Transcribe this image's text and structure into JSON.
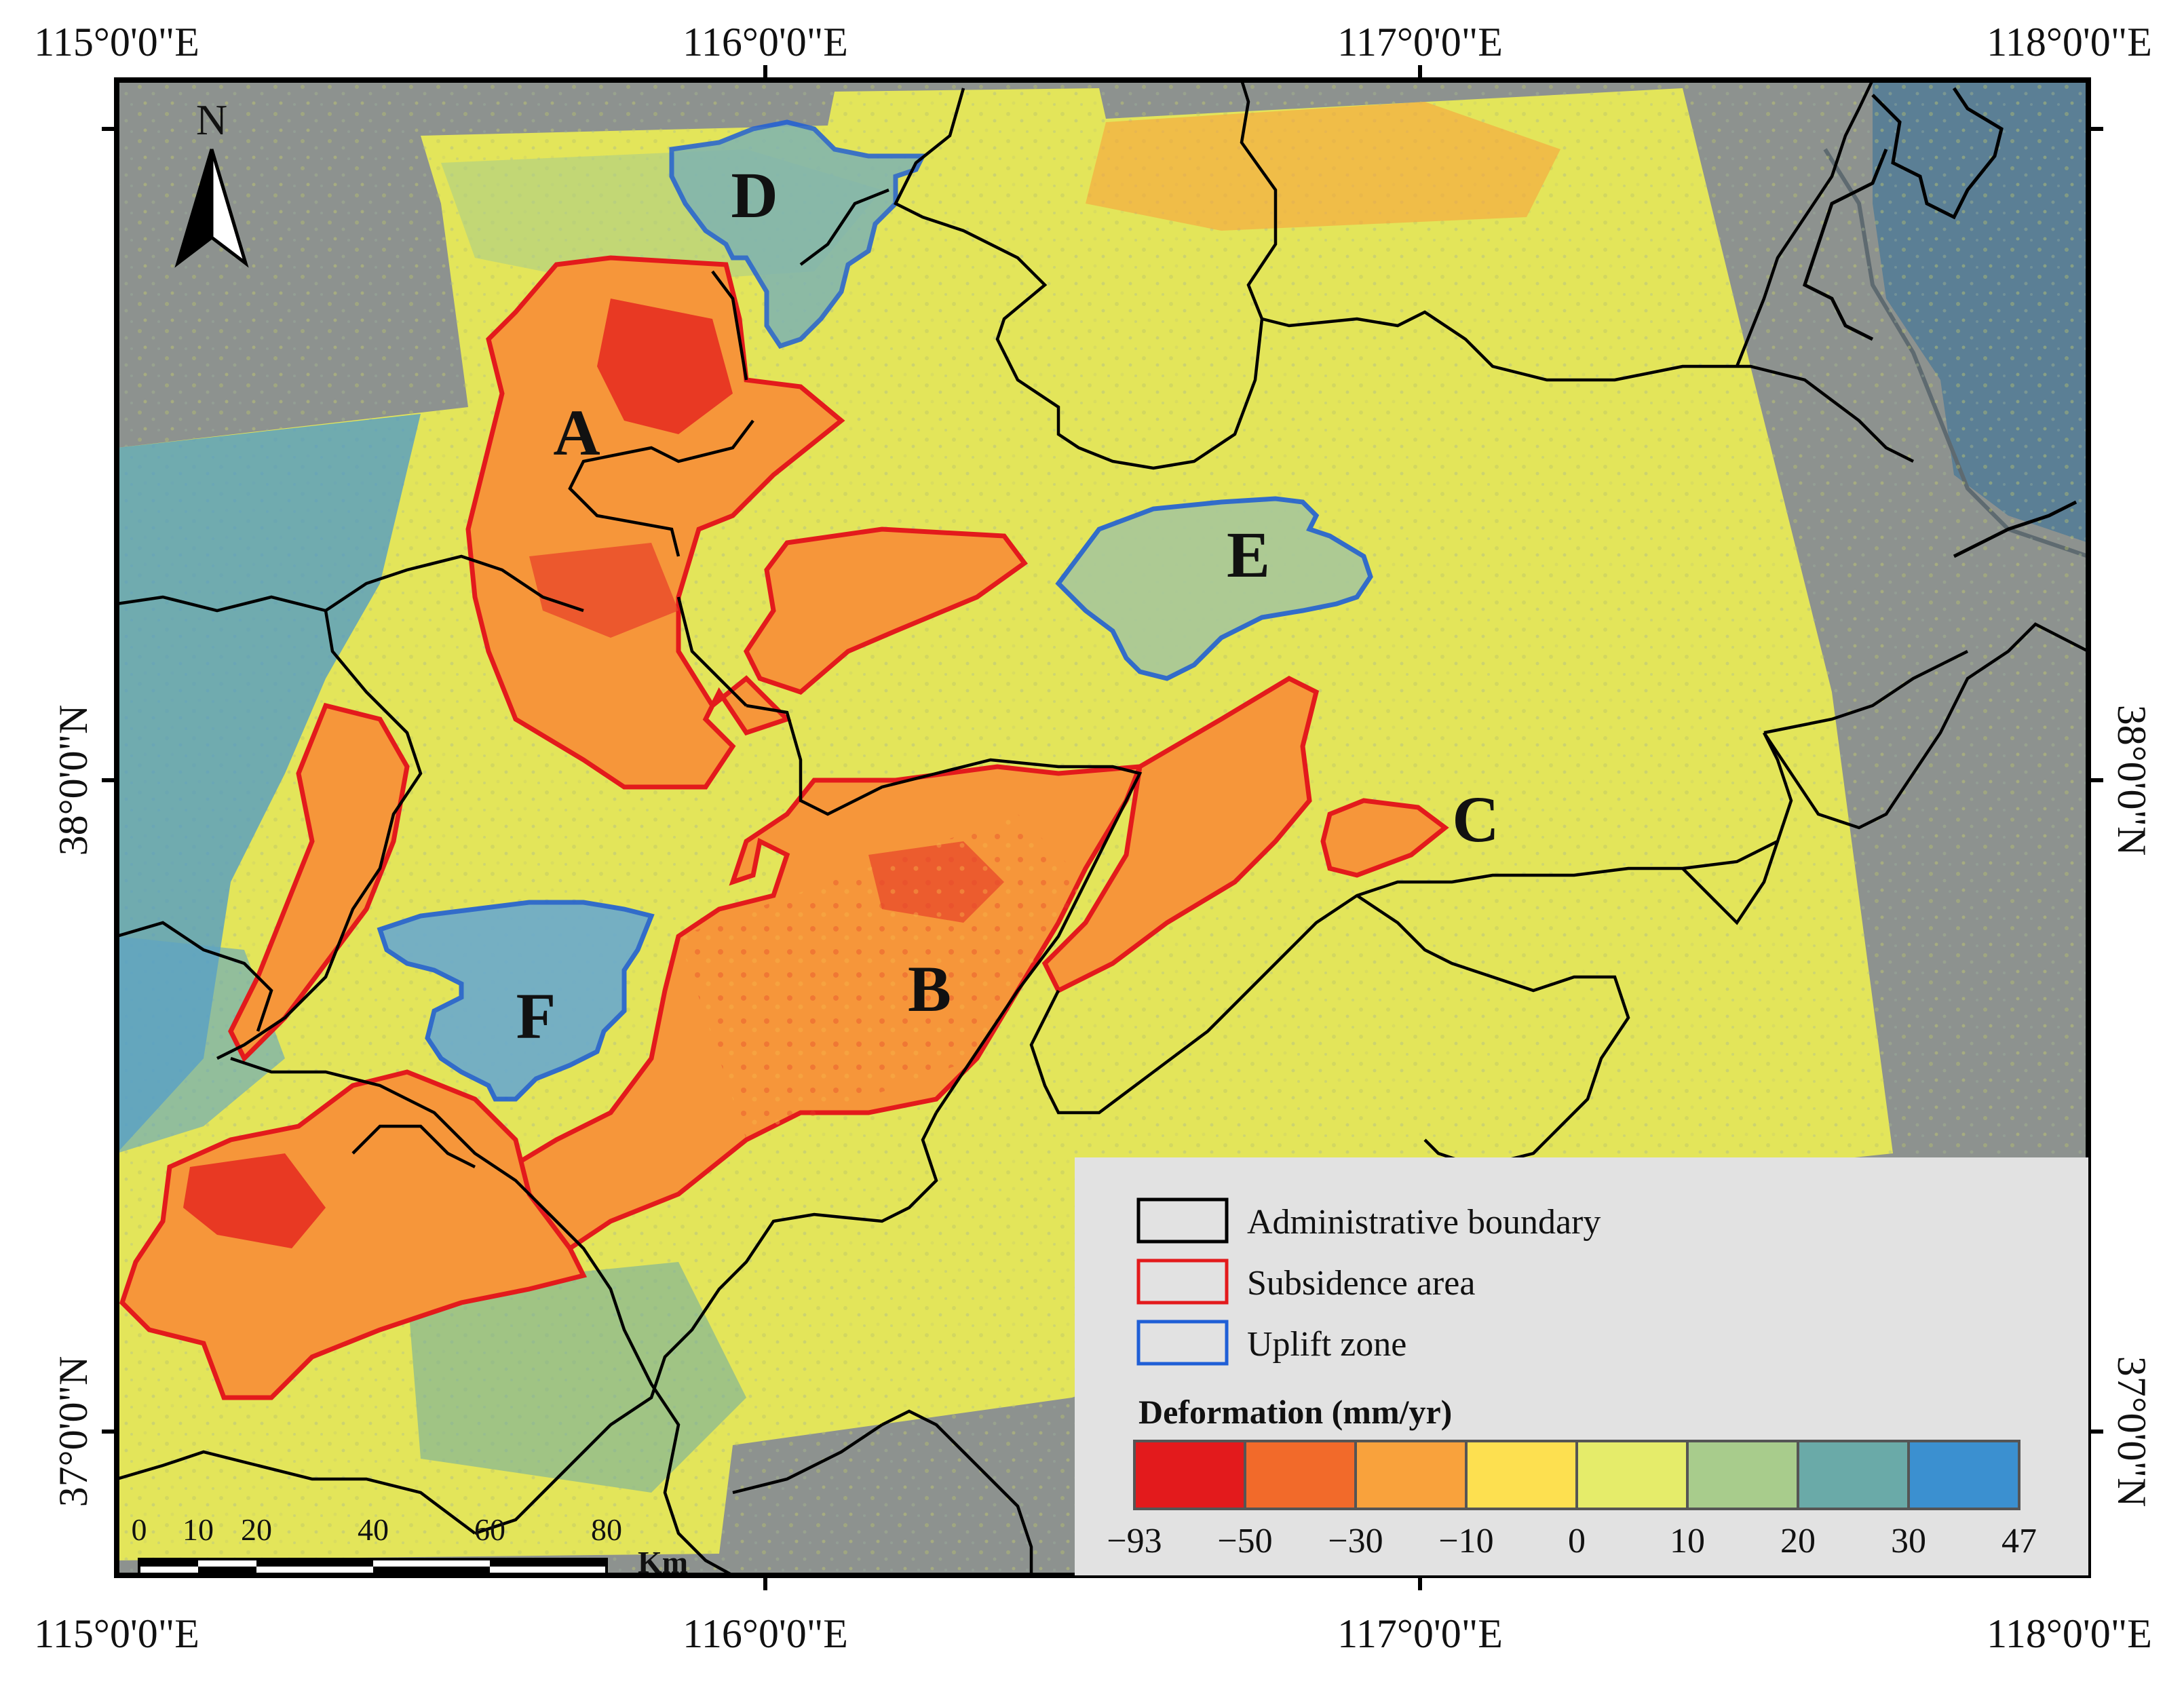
{
  "coords": {
    "top": [
      "115°0'0\"E",
      "116°0'0\"E",
      "117°0'0\"E",
      "118°0'0\"E"
    ],
    "bottom": [
      "115°0'0\"E",
      "116°0'0\"E",
      "117°0'0\"E",
      "118°0'0\"E"
    ],
    "left": [
      "38°0'0\"N",
      "37°0'0\"N"
    ],
    "right": [
      "38°0'0\"N",
      "37°0'0\"N"
    ]
  },
  "north_arrow": {
    "label": "N",
    "icon": "north-arrow-icon"
  },
  "zones": {
    "A": "A",
    "B": "B",
    "C": "C",
    "D": "D",
    "E": "E",
    "F": "F"
  },
  "legend": {
    "items": [
      {
        "label": "Administrative boundary",
        "color": "#000000"
      },
      {
        "label": "Subsidence area",
        "color": "#e31a1c"
      },
      {
        "label": "Uplift zone",
        "color": "#1f5fd6"
      }
    ],
    "colorbar_title": "Deformation (mm/yr)",
    "colorbar_colors": [
      "#e31a1c",
      "#f26a2a",
      "#f9a23c",
      "#fde050",
      "#e5ec6a",
      "#a8cc8c",
      "#6aaaa8",
      "#3b90d0"
    ],
    "colorbar_ticks": [
      "−93",
      "−50",
      "−30",
      "−10",
      "0",
      "10",
      "20",
      "30",
      "47"
    ]
  },
  "scale_bar": {
    "labels": [
      "0",
      "10",
      "20",
      "40",
      "60",
      "80"
    ],
    "unit": "Km"
  }
}
